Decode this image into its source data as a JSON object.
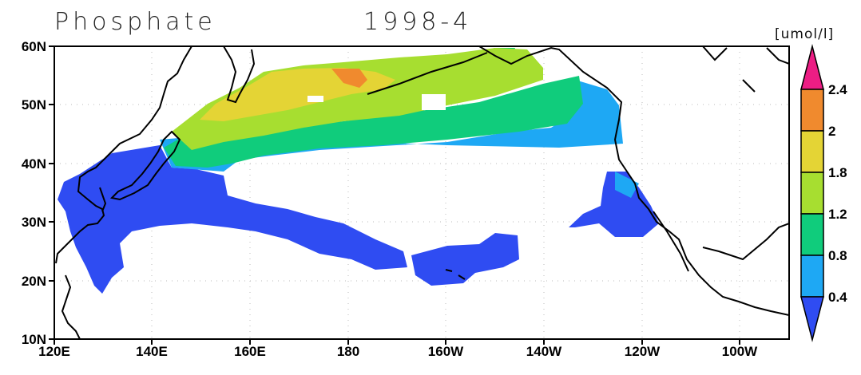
{
  "title": {
    "variable": "Phosphate",
    "date": "1998-4"
  },
  "colorbar": {
    "unit": "[umol/l]",
    "levels": [
      "0.4",
      "0.8",
      "1.2",
      "1.8",
      "2",
      "2.4"
    ],
    "colors": [
      "#2f4cf2",
      "#1ea8f4",
      "#10cc7c",
      "#a7de30",
      "#e4d435",
      "#f08a2e",
      "#ec1d84"
    ]
  },
  "axes": {
    "lon_labels": [
      "120E",
      "140E",
      "160E",
      "180",
      "160W",
      "140W",
      "120W",
      "100W"
    ],
    "lat_labels": [
      "10N",
      "20N",
      "30N",
      "40N",
      "50N",
      "60N"
    ],
    "lon_range": [
      120,
      270
    ],
    "lat_range": [
      10,
      60
    ]
  }
}
